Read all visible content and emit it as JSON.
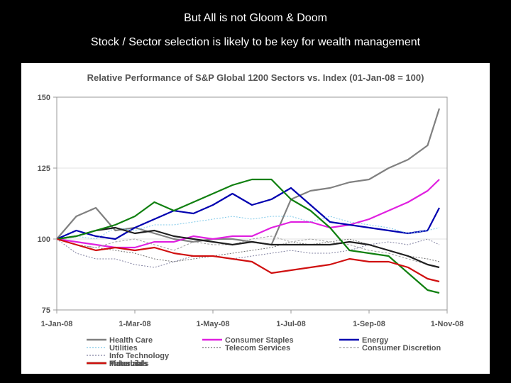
{
  "slide": {
    "title": "But All is not Gloom & Doom",
    "subtitle": "Stock / Sector selection is likely to be key for wealth management"
  },
  "chart_data": {
    "type": "line",
    "title": "Relative Performance of S&P Global 1200 Sectors vs. Index (01-Jan-08 = 100)",
    "xlabel": "",
    "ylabel": "",
    "x_tick_labels": [
      "1-Jan-08",
      "1-Mar-08",
      "1-May-08",
      "1-Jul-08",
      "1-Sep-08",
      "1-Nov-08"
    ],
    "x_tick_months": [
      0,
      2,
      4,
      6,
      8,
      10
    ],
    "y_ticks": [
      75,
      100,
      125,
      150
    ],
    "ylim": [
      75,
      150
    ],
    "xlim_months": [
      0,
      10
    ],
    "grid": "horizontal",
    "legend_position": "bottom",
    "x": [
      0,
      0.5,
      1,
      1.5,
      2,
      2.5,
      3,
      3.5,
      4,
      4.5,
      5,
      5.5,
      6,
      6.5,
      7,
      7.5,
      8,
      8.5,
      9,
      9.5,
      9.8
    ],
    "series": [
      {
        "name": "Health Care",
        "color": "#808080",
        "dash": "",
        "values": [
          100,
          108,
          111,
          103,
          104,
          102,
          100,
          99,
          100,
          100,
          99,
          98,
          114,
          117,
          118,
          120,
          121,
          125,
          128,
          133,
          146
        ]
      },
      {
        "name": "Consumer Staples",
        "color": "#e020e0",
        "dash": "",
        "values": [
          100,
          99,
          98,
          97,
          97,
          99,
          99,
          101,
          100,
          101,
          101,
          104,
          106,
          106,
          104,
          105,
          107,
          110,
          113,
          117,
          121
        ]
      },
      {
        "name": "Energy",
        "color": "#0000b0",
        "dash": "",
        "values": [
          100,
          103,
          101,
          100,
          104,
          107,
          110,
          109,
          112,
          116,
          112,
          114,
          118,
          112,
          106,
          105,
          104,
          103,
          102,
          103,
          111
        ]
      },
      {
        "name": "Utilities",
        "color": "#7fc8e8",
        "dash": "2,2",
        "values": [
          100,
          101,
          100,
          104,
          103,
          105,
          105,
          106,
          107,
          108,
          107,
          108,
          108,
          106,
          108,
          106,
          105,
          104,
          102,
          103,
          104
        ]
      },
      {
        "name": "Telecom Services",
        "color": "#707070",
        "dash": "2,2",
        "values": [
          100,
          98,
          97,
          96,
          95,
          93,
          92,
          93,
          94,
          95,
          96,
          97,
          99,
          98,
          99,
          100,
          98,
          96,
          94,
          93,
          92
        ]
      },
      {
        "name": "Consumer Discretion",
        "color": "#a0a0a0",
        "dash": "3,2",
        "values": [
          100,
          98,
          97,
          99,
          100,
          98,
          96,
          99,
          98,
          98,
          100,
          101,
          99,
          100,
          99,
          98,
          96,
          95,
          93,
          91,
          90
        ]
      },
      {
        "name": "Info Technology",
        "color": "#8080a0",
        "dash": "2,2",
        "values": [
          100,
          95,
          93,
          93,
          91,
          90,
          92,
          94,
          94,
          93,
          94,
          95,
          96,
          95,
          95,
          96,
          98,
          99,
          98,
          100,
          98
        ]
      },
      {
        "name": "Industrials",
        "color": "#202020",
        "dash": "",
        "values": [
          100,
          101,
          103,
          104,
          102,
          103,
          101,
          100,
          99,
          98,
          99,
          98,
          98,
          98,
          98,
          99,
          98,
          96,
          94,
          91,
          90
        ]
      },
      {
        "name": "Materials",
        "color": "#108010",
        "dash": "",
        "values": [
          100,
          101,
          103,
          105,
          108,
          113,
          110,
          113,
          116,
          119,
          121,
          121,
          114,
          110,
          104,
          96,
          95,
          94,
          88,
          82,
          81
        ]
      },
      {
        "name": "Financials",
        "color": "#d01010",
        "dash": "",
        "values": [
          100,
          98,
          96,
          97,
          96,
          97,
          95,
          94,
          94,
          93,
          92,
          88,
          89,
          90,
          91,
          93,
          92,
          92,
          90,
          86,
          85
        ]
      }
    ]
  }
}
